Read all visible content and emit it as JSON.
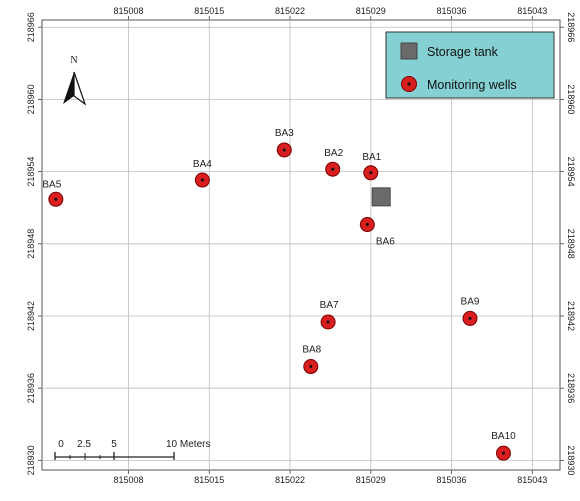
{
  "map": {
    "north_label": "N",
    "x_ticks": [
      "815008",
      "815015",
      "815022",
      "815029",
      "815036",
      "815043"
    ],
    "y_ticks": [
      "218966",
      "218960",
      "218954",
      "218948",
      "218942",
      "218936",
      "218930"
    ],
    "extent": {
      "x": [
        815000.5,
        815045.4
      ],
      "y": [
        218929.2,
        218966.6
      ]
    },
    "grid_color": "#bdbdbd"
  },
  "legend": {
    "background": "#85d0d2",
    "items": [
      {
        "label": "Storage tank",
        "symbol": "square",
        "color": "#6a6a6a"
      },
      {
        "label": "Monitoring wells",
        "symbol": "circle",
        "color": "#d81e1e"
      }
    ]
  },
  "scale_bar": {
    "labels": [
      "0",
      "2.5",
      "5",
      "10 Meters"
    ],
    "values": [
      0,
      2.5,
      5,
      10
    ]
  },
  "storage_tank": {
    "x": 815029.9,
    "y": 218951.9
  },
  "wells": [
    {
      "name": "BA1",
      "x": 815029.0,
      "y": 218953.9
    },
    {
      "name": "BA2",
      "x": 815025.7,
      "y": 218954.2
    },
    {
      "name": "BA3",
      "x": 815021.5,
      "y": 218955.8
    },
    {
      "name": "BA4",
      "x": 815014.4,
      "y": 218953.3
    },
    {
      "name": "BA5",
      "x": 815001.7,
      "y": 218951.7
    },
    {
      "name": "BA6",
      "x": 815028.7,
      "y": 218949.6
    },
    {
      "name": "BA7",
      "x": 815025.3,
      "y": 218941.5
    },
    {
      "name": "BA8",
      "x": 815023.8,
      "y": 218937.8
    },
    {
      "name": "BA9",
      "x": 815037.6,
      "y": 218941.8
    },
    {
      "name": "BA10",
      "x": 815040.5,
      "y": 218930.6
    }
  ]
}
